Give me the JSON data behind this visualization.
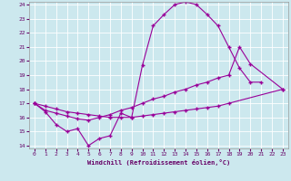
{
  "bg_color": "#cce8ee",
  "line_color": "#990099",
  "grid_color": "#ffffff",
  "xlabel": "Windchill (Refroidissement éolien,°C)",
  "xlim": [
    0,
    23
  ],
  "ylim": [
    14,
    24
  ],
  "xticks": [
    0,
    1,
    2,
    3,
    4,
    5,
    6,
    7,
    8,
    9,
    10,
    11,
    12,
    13,
    14,
    15,
    16,
    17,
    18,
    19,
    20,
    21,
    22,
    23
  ],
  "yticks": [
    14,
    15,
    16,
    17,
    18,
    19,
    20,
    21,
    22,
    23,
    24
  ],
  "curve1_x": [
    0,
    1,
    2,
    3,
    4,
    5,
    6,
    7,
    8,
    9,
    10,
    11,
    12,
    13,
    14,
    15,
    16,
    17,
    18,
    19,
    20,
    21
  ],
  "curve1_y": [
    17.0,
    16.4,
    15.5,
    15.0,
    15.2,
    14.0,
    14.5,
    14.7,
    16.3,
    16.0,
    19.7,
    22.5,
    23.3,
    24.0,
    24.2,
    24.0,
    23.3,
    22.5,
    21.0,
    19.5,
    18.5,
    18.5
  ],
  "curve2_x": [
    0,
    1,
    2,
    3,
    4,
    5,
    6,
    7,
    8,
    9,
    10,
    11,
    12,
    13,
    14,
    15,
    16,
    17,
    18,
    19,
    20,
    23
  ],
  "curve2_y": [
    17.0,
    16.5,
    16.3,
    16.1,
    15.9,
    15.8,
    16.0,
    16.2,
    16.5,
    16.7,
    17.0,
    17.3,
    17.5,
    17.8,
    18.0,
    18.3,
    18.5,
    18.8,
    19.0,
    21.0,
    19.8,
    18.0
  ],
  "curve3_x": [
    0,
    1,
    2,
    3,
    4,
    5,
    6,
    7,
    8,
    9,
    10,
    11,
    12,
    13,
    14,
    15,
    16,
    17,
    18,
    23
  ],
  "curve3_y": [
    17.0,
    16.8,
    16.6,
    16.4,
    16.3,
    16.2,
    16.1,
    16.0,
    16.0,
    16.0,
    16.1,
    16.2,
    16.3,
    16.4,
    16.5,
    16.6,
    16.7,
    16.8,
    17.0,
    18.0
  ]
}
